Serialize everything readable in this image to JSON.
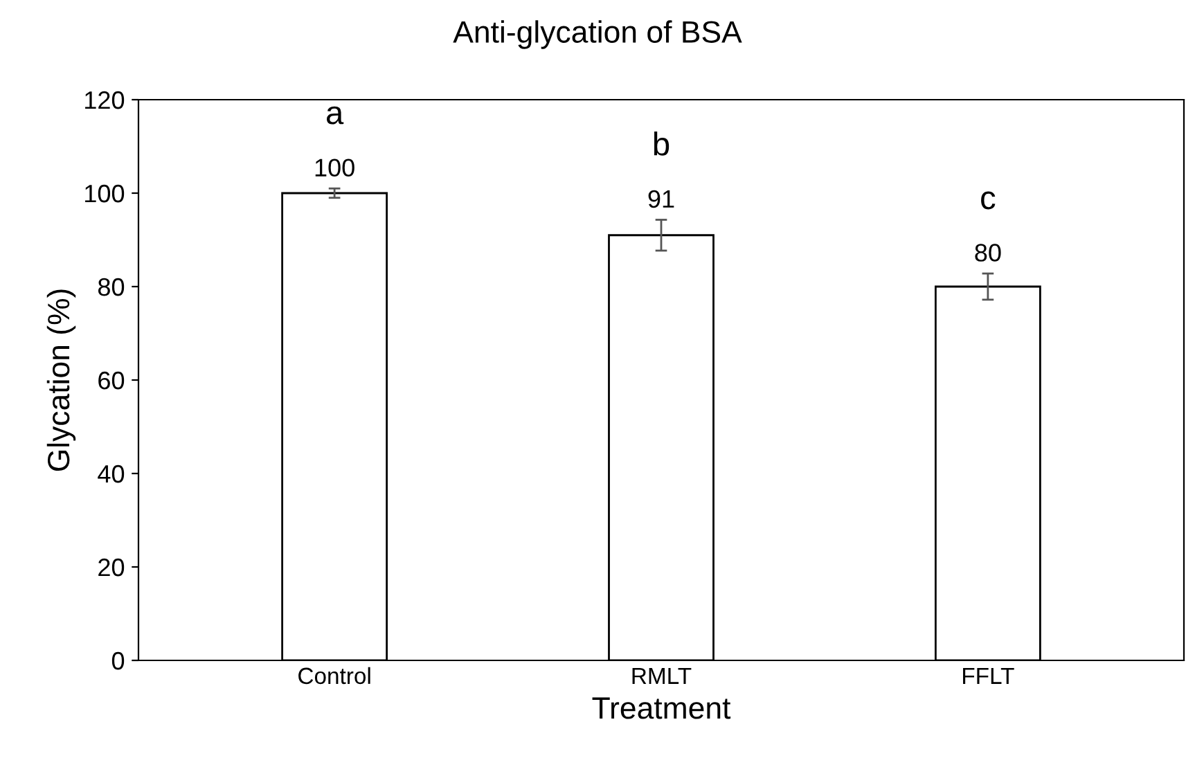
{
  "chart_data": {
    "type": "bar",
    "title": "Anti-glycation of BSA",
    "xlabel": "Treatment",
    "ylabel": "Glycation (%)",
    "categories": [
      "Control",
      "RMLT",
      "FFLT"
    ],
    "values": [
      100,
      91,
      80
    ],
    "errors": [
      1,
      3.3,
      2.8
    ],
    "color": "#ffffff",
    "data_labels": true,
    "annotations": [
      "a",
      "b",
      "c"
    ],
    "ylim": [
      0,
      120
    ],
    "yticks": [
      0,
      20,
      40,
      60,
      80,
      100,
      120
    ],
    "grid": false,
    "legend": false
  }
}
